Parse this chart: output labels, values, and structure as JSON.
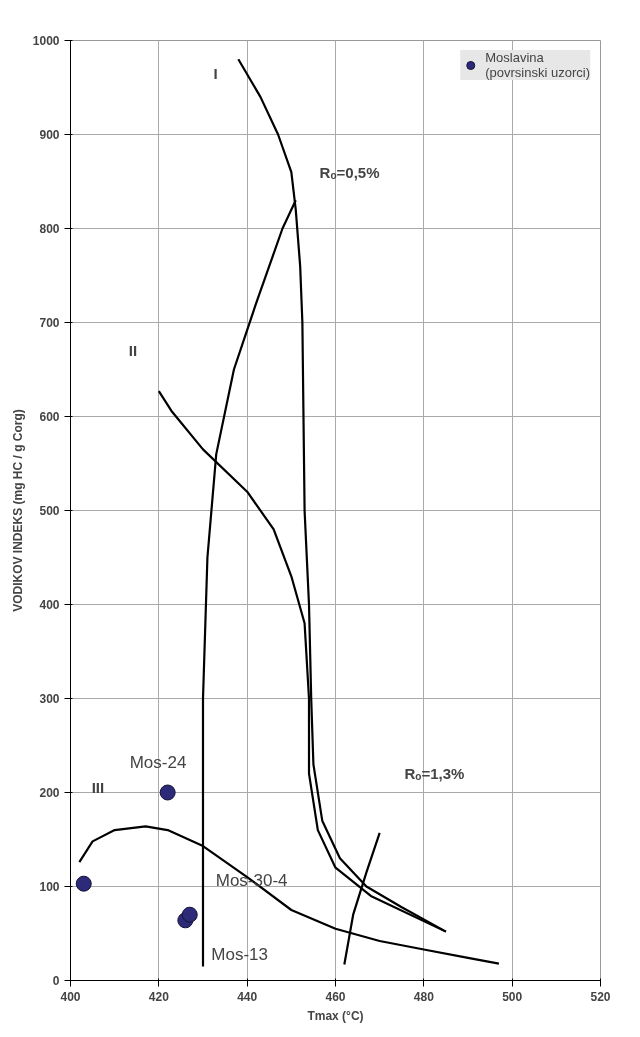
{
  "chart_data": {
    "type": "scatter",
    "xlabel": "Tmax (°C)",
    "ylabel": "VODIKOV INDEKS (mg HC / g Corg)",
    "xlim": [
      400,
      520
    ],
    "ylim": [
      0,
      1000
    ],
    "xticks": [
      400,
      420,
      440,
      460,
      480,
      500,
      520
    ],
    "yticks": [
      0,
      100,
      200,
      300,
      400,
      500,
      600,
      700,
      800,
      900,
      1000
    ],
    "grid": true,
    "legend": "top right",
    "series": [
      {
        "name": "Moslavina\n(povrsinski uzorci)",
        "marker": "circle",
        "color": "#2e2a7a",
        "x": [
          403,
          422,
          426,
          427
        ],
        "values": [
          103,
          200,
          64,
          70
        ]
      },
      {
        "type": "line",
        "color": "#000000",
        "x": [
          438,
          443,
          447,
          450,
          451,
          452,
          452.5,
          453,
          454,
          454.5,
          455,
          457,
          461,
          467,
          475,
          485
        ],
        "values": [
          980,
          940,
          900,
          860,
          820,
          760,
          700,
          500,
          400,
          300,
          230,
          170,
          130,
          100,
          78,
          52
        ]
      },
      {
        "type": "line",
        "color": "#000000",
        "x": [
          420,
          423,
          430,
          440,
          446,
          450,
          453,
          454,
          454,
          456,
          460,
          468,
          485
        ],
        "values": [
          627,
          605,
          565,
          520,
          480,
          430,
          380,
          300,
          220,
          160,
          120,
          90,
          52
        ]
      },
      {
        "type": "line",
        "color": "#000000",
        "x": [
          402,
          405,
          410,
          417,
          422,
          430,
          440,
          450,
          460,
          470,
          480,
          490,
          497
        ],
        "values": [
          126,
          148,
          160,
          164,
          160,
          143,
          110,
          75,
          55,
          42,
          33,
          24,
          18
        ]
      },
      {
        "type": "line",
        "color": "#000000",
        "x": [
          430,
          430,
          431,
          433,
          437,
          442,
          448,
          451
        ],
        "values": [
          15,
          300,
          450,
          560,
          650,
          720,
          800,
          830
        ]
      },
      {
        "type": "line",
        "color": "#000000",
        "x": [
          462,
          464,
          467,
          470
        ],
        "values": [
          17,
          70,
          115,
          157
        ]
      }
    ],
    "annotations": [
      "I",
      "II",
      "III",
      "Rₒ=0,5%",
      "Rₒ=1,3%",
      {
        "text": "Mos-24",
        "x": 422,
        "y": 200
      },
      {
        "text": "Mos-30-4",
        "x": 427,
        "y": 70
      },
      {
        "text": "Mos-13",
        "x": 426,
        "y": 64
      }
    ]
  }
}
